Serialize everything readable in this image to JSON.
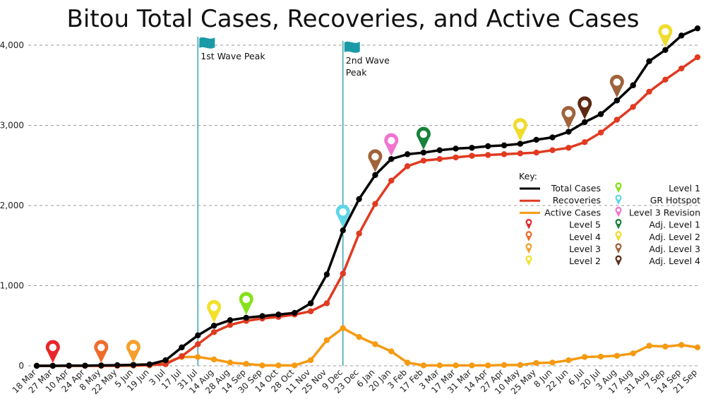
{
  "chart_data": {
    "type": "line",
    "title": "Bitou Total Cases, Recoveries, and Active Cases",
    "xlabel": "",
    "ylabel": "",
    "ylim": [
      0,
      4200
    ],
    "yticks": [
      0,
      1000,
      2000,
      3000,
      4000
    ],
    "ytick_labels": [
      "0",
      "1,000",
      "2,000",
      "3,000",
      "4,000"
    ],
    "categories": [
      "18 Mar",
      "27 Mar",
      "10 Apr",
      "24 Apr",
      "8 May",
      "22 May",
      "5 Jun",
      "19 Jun",
      "3 Jul",
      "17 Jul",
      "31 Jul",
      "14 Aug",
      "28 Aug",
      "14 Sep",
      "30 Sep",
      "14 Oct",
      "28 Oct",
      "11 Nov",
      "25 Nov",
      "9 Dec",
      "23 Dec",
      "6 Jan",
      "20 Jan",
      "3 Feb",
      "17 Feb",
      "3 Mar",
      "17 Mar",
      "31 Mar",
      "14 Apr",
      "27 Apr",
      "10 May",
      "25 May",
      "8 Jun",
      "22 Jun",
      "6 Jul",
      "20 Jul",
      "3 Aug",
      "17 Aug",
      "31 Aug",
      "7 Sep",
      "14 Sep",
      "21 Sep"
    ],
    "series": [
      {
        "name": "Total Cases",
        "color": "#000000",
        "values": [
          0,
          0,
          2,
          2,
          5,
          8,
          12,
          18,
          70,
          230,
          380,
          500,
          570,
          600,
          620,
          640,
          660,
          780,
          1140,
          1690,
          2080,
          2380,
          2580,
          2640,
          2660,
          2690,
          2710,
          2720,
          2740,
          2750,
          2770,
          2820,
          2850,
          2920,
          3040,
          3140,
          3310,
          3500,
          3800,
          3940,
          4120,
          4210
        ]
      },
      {
        "name": "Recoveries",
        "color": "#e03a21",
        "values": [
          0,
          0,
          0,
          0,
          0,
          2,
          5,
          8,
          20,
          120,
          270,
          420,
          510,
          560,
          590,
          610,
          640,
          680,
          780,
          1150,
          1650,
          2020,
          2310,
          2490,
          2560,
          2580,
          2600,
          2620,
          2630,
          2640,
          2650,
          2660,
          2690,
          2720,
          2790,
          2910,
          3070,
          3230,
          3420,
          3570,
          3710,
          3850
        ]
      },
      {
        "name": "Active Cases",
        "color": "#f59a12",
        "values": [
          0,
          0,
          0,
          0,
          0,
          0,
          2,
          5,
          40,
          110,
          110,
          80,
          40,
          25,
          5,
          5,
          5,
          70,
          320,
          470,
          360,
          270,
          180,
          40,
          5,
          5,
          5,
          5,
          5,
          10,
          10,
          35,
          40,
          70,
          110,
          115,
          125,
          155,
          250,
          240,
          260,
          230
        ]
      }
    ],
    "annotations": [
      {
        "label": "1st Wave Peak",
        "category": "31 Jul"
      },
      {
        "label": "2nd Wave Peak",
        "category": "9 Dec"
      }
    ],
    "markers": [
      {
        "level": "Level 5",
        "category": "27 Mar",
        "series": "Active Cases",
        "color": "#e8262b"
      },
      {
        "level": "Level 4",
        "category": "8 May",
        "series": "Active Cases",
        "color": "#ef6c2b"
      },
      {
        "level": "Level 3",
        "category": "5 Jun",
        "series": "Active Cases",
        "color": "#f3a02d"
      },
      {
        "level": "Level 2",
        "category": "14 Aug",
        "series": "Total Cases",
        "color": "#f3e02b"
      },
      {
        "level": "Level 1",
        "category": "14 Sep",
        "series": "Total Cases",
        "color": "#86e21b"
      },
      {
        "level": "GR Hotspot",
        "category": "9 Dec",
        "series": "Total Cases",
        "color": "#5fd6e8"
      },
      {
        "level": "Adj. Level 3",
        "category": "6 Jan",
        "series": "Total Cases",
        "color": "#a0633a"
      },
      {
        "level": "Level 3 Revision",
        "category": "20 Jan",
        "series": "Total Cases",
        "color": "#f074cf"
      },
      {
        "level": "Adj. Level 1",
        "category": "17 Feb",
        "series": "Total Cases",
        "color": "#17823a"
      },
      {
        "level": "Adj. Level 2",
        "category": "10 May",
        "series": "Total Cases",
        "color": "#f0dc2c"
      },
      {
        "level": "Adj. Level 3",
        "category": "22 Jun",
        "series": "Total Cases",
        "color": "#a0633a"
      },
      {
        "level": "Adj. Level 4",
        "category": "6 Jul",
        "series": "Total Cases",
        "color": "#5e2a14"
      },
      {
        "level": "Adj. Level 3",
        "category": "3 Aug",
        "series": "Total Cases",
        "color": "#a0633a"
      },
      {
        "level": "Adj. Level 2",
        "category": "7 Sep",
        "series": "Total Cases",
        "color": "#f0dc2c"
      }
    ],
    "legend": {
      "title": "Key:",
      "position": "right",
      "left": [
        {
          "label": "Total Cases",
          "kind": "line",
          "color": "#000000"
        },
        {
          "label": "Recoveries",
          "kind": "line",
          "color": "#e03a21"
        },
        {
          "label": "Active Cases",
          "kind": "line",
          "color": "#f59a12"
        },
        {
          "label": "Level 5",
          "kind": "pin",
          "color": "#e8262b"
        },
        {
          "label": "Level 4",
          "kind": "pin",
          "color": "#ef6c2b"
        },
        {
          "label": "Level 3",
          "kind": "pin",
          "color": "#f3a02d"
        },
        {
          "label": "Level 2",
          "kind": "pin",
          "color": "#f3e02b"
        }
      ],
      "right": [
        {
          "label": "Level 1",
          "kind": "pin",
          "color": "#86e21b"
        },
        {
          "label": "GR Hotspot",
          "kind": "pin",
          "color": "#5fd6e8"
        },
        {
          "label": "Level 3 Revision",
          "kind": "pin",
          "color": "#f074cf"
        },
        {
          "label": "Adj. Level 1",
          "kind": "pin",
          "color": "#17823a"
        },
        {
          "label": "Adj. Level 2",
          "kind": "pin",
          "color": "#f0dc2c"
        },
        {
          "label": "Adj. Level 3",
          "kind": "pin",
          "color": "#a0633a"
        },
        {
          "label": "Adj. Level 4",
          "kind": "pin",
          "color": "#5e2a14"
        }
      ]
    },
    "grid": true,
    "annotation_color": "#1a9aa6"
  }
}
